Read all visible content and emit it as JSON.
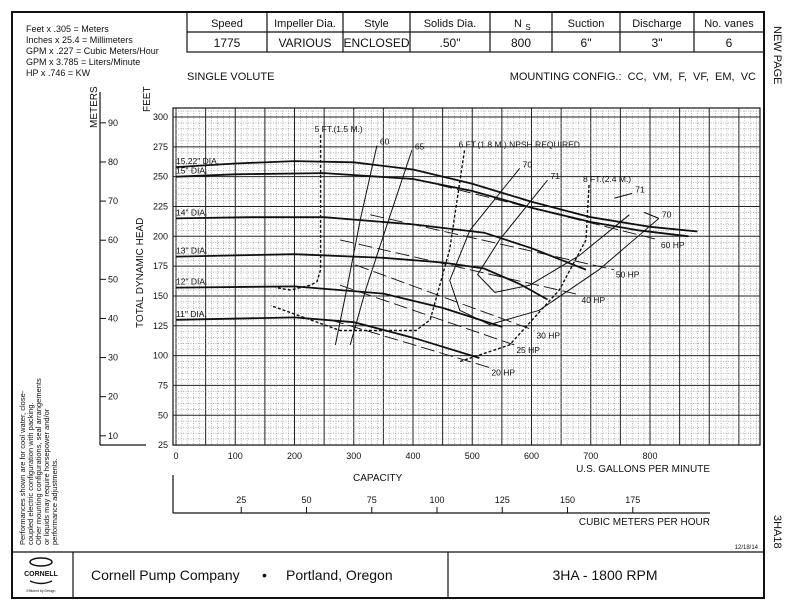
{
  "conversions": [
    "Feet x .305 = Meters",
    "Inches x 25.4 = Millimeters",
    "GPM x .227 = Cubic Meters/Hour",
    "GPM x 3.785 = Liters/Minute",
    "HP x .746 = KW"
  ],
  "spec_table": {
    "headers": [
      "Speed",
      "Impeller Dia.",
      "Style",
      "Solids Dia.",
      "N",
      "Suction",
      "Discharge",
      "No. vanes"
    ],
    "ns_subscript": "S",
    "values": [
      "1775",
      "VARIOUS",
      "ENCLOSED",
      ".50\"",
      "800",
      "6\"",
      "3\"",
      "6"
    ]
  },
  "side_labels": {
    "new_page": "NEW PAGE",
    "code": "3HA18"
  },
  "date": "12/18/14",
  "notes": [
    "Performances shown are for cool water, close-",
    "coupled electric configuration with packing.",
    "Other mounting configurations, seal arrangements",
    "or liquids may require horsepower and/or",
    "performance adjustments."
  ],
  "footer": {
    "logo_text": "CORNELL",
    "logo_tagline": "Efficient by Design",
    "company": "Cornell Pump Company",
    "bullet": "•",
    "location": "Portland, Oregon",
    "model": "3HA - 1800 RPM"
  },
  "chart_data": {
    "type": "line",
    "title_left": "SINGLE VOLUTE",
    "title_right": "MOUNTING CONFIG.:  CC,  VM,  F,  VF,  EM,  VC",
    "xlabel": "CAPACITY",
    "x_unit_label": "U.S. GALLONS PER MINUTE",
    "x2_unit_label": "CUBIC METERS PER HOUR",
    "ylabel": "TOTAL DYNAMIC HEAD",
    "y_unit_label": "FEET",
    "y2_unit_label": "METERS",
    "xlim": [
      0,
      985
    ],
    "ylim": [
      25,
      307
    ],
    "grid": true,
    "x_ticks": [
      0,
      100,
      200,
      300,
      400,
      500,
      600,
      700,
      800
    ],
    "y_ticks": [
      25,
      50,
      75,
      100,
      125,
      150,
      175,
      200,
      225,
      250,
      275,
      300
    ],
    "x2_ticks": [
      25,
      50,
      75,
      100,
      125,
      150,
      175
    ],
    "y2_ticks": [
      10,
      20,
      30,
      40,
      50,
      60,
      70,
      80,
      90
    ],
    "impeller_curves": [
      {
        "name": "15.22\" DIA.",
        "points": [
          [
            0,
            258
          ],
          [
            100,
            261
          ],
          [
            200,
            263
          ],
          [
            300,
            262
          ],
          [
            400,
            256
          ],
          [
            500,
            244
          ],
          [
            600,
            229
          ],
          [
            700,
            216
          ],
          [
            800,
            208
          ],
          [
            880,
            204
          ]
        ]
      },
      {
        "name": "15\" DIA.",
        "points": [
          [
            0,
            250
          ],
          [
            100,
            252
          ],
          [
            250,
            253
          ],
          [
            400,
            248
          ],
          [
            500,
            238
          ],
          [
            600,
            224
          ],
          [
            700,
            212
          ],
          [
            780,
            205
          ],
          [
            865,
            200
          ]
        ]
      },
      {
        "name": "14\" DIA.",
        "points": [
          [
            0,
            215
          ],
          [
            125,
            216
          ],
          [
            250,
            216
          ],
          [
            400,
            210
          ],
          [
            520,
            203
          ],
          [
            600,
            190
          ],
          [
            692,
            172
          ]
        ]
      },
      {
        "name": "13\" DIA.",
        "points": [
          [
            0,
            183
          ],
          [
            200,
            185
          ],
          [
            350,
            182
          ],
          [
            450,
            178
          ],
          [
            520,
            173
          ],
          [
            580,
            160
          ],
          [
            627,
            147
          ]
        ]
      },
      {
        "name": "12\" DIA.",
        "points": [
          [
            0,
            157
          ],
          [
            200,
            158
          ],
          [
            350,
            152
          ],
          [
            450,
            140
          ],
          [
            551,
            124
          ]
        ]
      },
      {
        "name": "11\" DIA.",
        "points": [
          [
            0,
            130
          ],
          [
            200,
            132
          ],
          [
            300,
            128
          ],
          [
            400,
            115
          ],
          [
            512,
            98
          ]
        ]
      }
    ],
    "efficiency_curves": [
      {
        "name": "60",
        "points": [
          [
            339,
            276
          ],
          [
            311,
            214
          ],
          [
            290,
            160
          ],
          [
            269,
            109
          ]
        ]
      },
      {
        "name": "65",
        "points": [
          [
            398,
            272
          ],
          [
            353,
            205
          ],
          [
            320,
            155
          ],
          [
            294,
            109
          ]
        ]
      },
      {
        "name": "70",
        "points": [
          [
            580,
            257
          ],
          [
            496,
            205
          ],
          [
            462,
            163
          ],
          [
            479,
            138
          ],
          [
            529,
            126
          ],
          [
            613,
            138
          ],
          [
            714,
            172
          ],
          [
            815,
            215
          ]
        ]
      },
      {
        "name": "71",
        "points": [
          [
            627,
            247
          ],
          [
            546,
            197
          ],
          [
            509,
            168
          ],
          [
            538,
            153
          ],
          [
            597,
            159
          ],
          [
            681,
            184
          ],
          [
            765,
            218
          ]
        ]
      },
      {
        "name": "71",
        "points": [
          [
            740,
            232
          ],
          [
            770,
            236
          ]
        ]
      },
      {
        "name": "70",
        "points": [
          [
            790,
            220
          ],
          [
            815,
            215
          ]
        ]
      }
    ],
    "npsh_curves": [
      {
        "name": "5 FT.(1.5 M.)",
        "points": [
          [
            244,
            285
          ],
          [
            244,
            172
          ],
          [
            238,
            162
          ],
          [
            227,
            159
          ],
          [
            193,
            155
          ],
          [
            168,
            157
          ]
        ]
      },
      {
        "name": "6 FT.(1.8 M.) NPSH REQUIRED",
        "points": [
          [
            487,
            272
          ],
          [
            462,
            189
          ],
          [
            429,
            130
          ],
          [
            405,
            121
          ],
          [
            378,
            121
          ],
          [
            277,
            121
          ],
          [
            160,
            142
          ]
        ]
      },
      {
        "name": "8 FT.(2.4 M.)",
        "points": [
          [
            697,
            243
          ],
          [
            692,
            197
          ],
          [
            647,
            155
          ],
          [
            563,
            109
          ],
          [
            479,
            95
          ]
        ]
      }
    ],
    "hp_lines": [
      {
        "name": "20 HP",
        "points": [
          [
            260,
            130
          ],
          [
            529,
            90
          ]
        ]
      },
      {
        "name": "25 HP",
        "points": [
          [
            277,
            159
          ],
          [
            571,
            109
          ]
        ]
      },
      {
        "name": "30 HP",
        "points": [
          [
            303,
            176
          ],
          [
            605,
            121
          ]
        ]
      },
      {
        "name": "40 HP",
        "points": [
          [
            277,
            197
          ],
          [
            681,
            151
          ]
        ]
      },
      {
        "name": "50 HP",
        "points": [
          [
            328,
            218
          ],
          [
            739,
            172
          ]
        ]
      },
      {
        "name": "60 HP",
        "points": [
          [
            412,
            247
          ],
          [
            815,
            197
          ]
        ]
      }
    ]
  }
}
